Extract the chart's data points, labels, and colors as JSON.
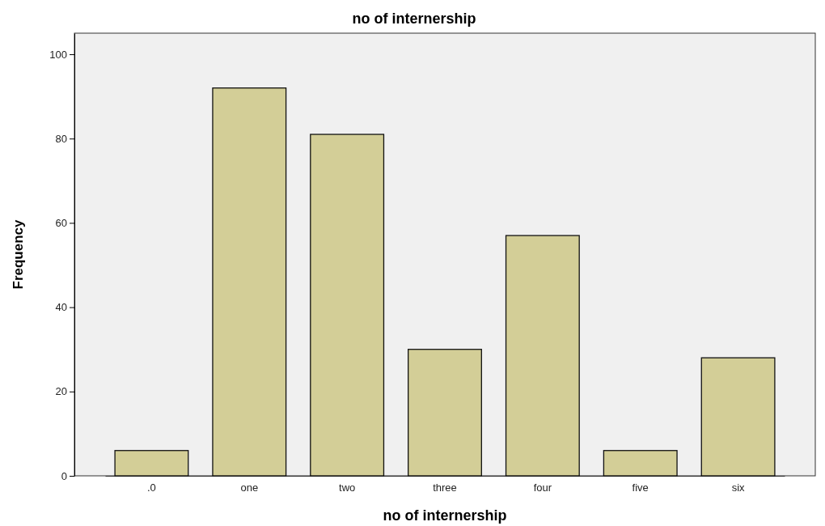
{
  "chart_data": {
    "type": "bar",
    "title": "no of internership",
    "xlabel": "no of internership",
    "ylabel": "Frequency",
    "categories": [
      ".0",
      "one",
      "two",
      "three",
      "four",
      "five",
      "six"
    ],
    "values": [
      6,
      92,
      81,
      30,
      57,
      6,
      28
    ],
    "color": "#d3ce97",
    "ylim": [
      0,
      105
    ],
    "yticks": [
      0,
      20,
      40,
      60,
      80,
      100
    ],
    "grid": false
  }
}
